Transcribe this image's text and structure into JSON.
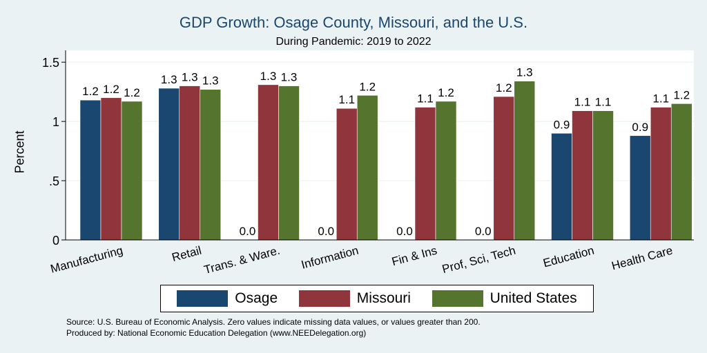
{
  "chart_data": {
    "type": "bar",
    "title": "GDP Growth: Osage County, Missouri, and the U.S.",
    "subtitle": "During Pandemic: 2019 to 2022",
    "ylabel": "Percent",
    "xlabel": "",
    "ylim": [
      0,
      1.6
    ],
    "yticks": [
      0,
      0.5,
      1,
      1.5
    ],
    "ytick_labels": [
      "0",
      ".5",
      "1",
      "1.5"
    ],
    "grid": true,
    "legend_position": "bottom",
    "categories": [
      "Manufacturing",
      "Retail",
      "Trans. & Ware.",
      "Information",
      "Fin & Ins",
      "Prof, Sci, Tech",
      "Education",
      "Health Care"
    ],
    "series": [
      {
        "name": "Osage",
        "color": "#1a476f",
        "values": [
          1.18,
          1.28,
          0,
          0,
          0,
          0,
          0.9,
          0.88
        ],
        "labels": [
          "1.2",
          "1.3",
          "0.0",
          "0.0",
          "0.0",
          "0.0",
          "0.9",
          "0.9"
        ]
      },
      {
        "name": "Missouri",
        "color": "#90353b",
        "values": [
          1.2,
          1.3,
          1.31,
          1.11,
          1.12,
          1.21,
          1.09,
          1.12
        ],
        "labels": [
          "1.2",
          "1.3",
          "1.3",
          "1.1",
          "1.1",
          "1.2",
          "1.1",
          "1.1"
        ]
      },
      {
        "name": "United States",
        "color": "#55752f",
        "values": [
          1.17,
          1.27,
          1.3,
          1.22,
          1.17,
          1.34,
          1.09,
          1.15
        ],
        "labels": [
          "1.2",
          "1.3",
          "1.3",
          "1.2",
          "1.2",
          "1.3",
          "1.1",
          "1.2"
        ]
      }
    ]
  },
  "footer": {
    "source": "Source: U.S. Bureau of Economic Analysis. Zero values indicate missing data values, or values greater than 200.",
    "produced_by": "Produced by: National Economic Education Delegation (www.NEEDelegation.org)"
  }
}
